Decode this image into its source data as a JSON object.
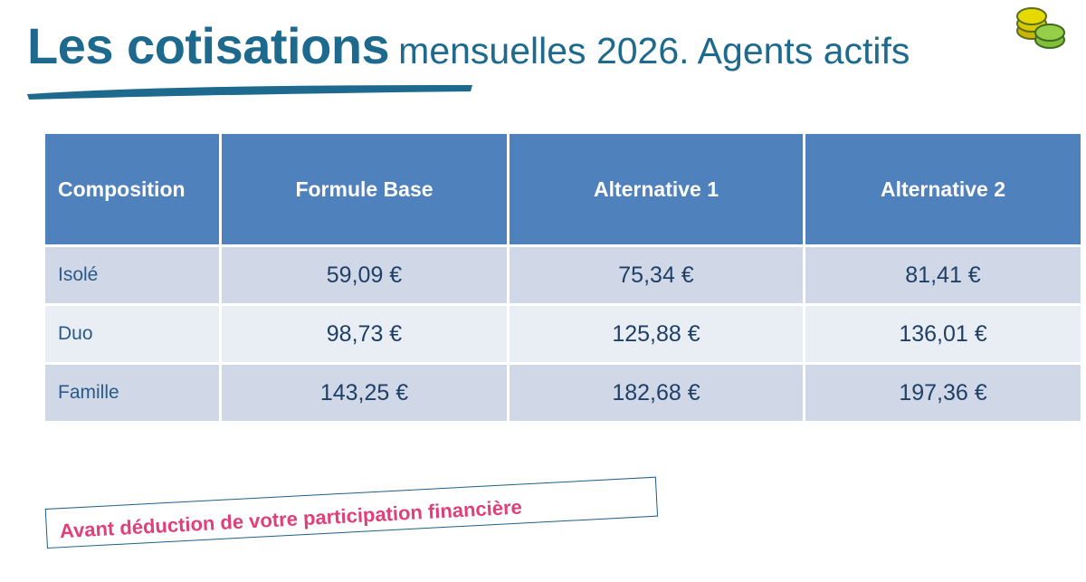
{
  "header": {
    "title_bold": "Les cotisations",
    "title_rest": "mensuelles 2026. Agents actifs"
  },
  "table": {
    "columns": [
      "Composition",
      "Formule Base",
      "Alternative 1",
      "Alternative 2"
    ],
    "rows": [
      [
        "Isolé",
        "59,09 €",
        "75,34 €",
        "81,41 €"
      ],
      [
        "Duo",
        "98,73 €",
        "125,88 €",
        "136,01 €"
      ],
      [
        "Famille",
        "143,25 €",
        "182,68 €",
        "197,36 €"
      ]
    ]
  },
  "note": "Avant déduction de votre participation financière"
}
